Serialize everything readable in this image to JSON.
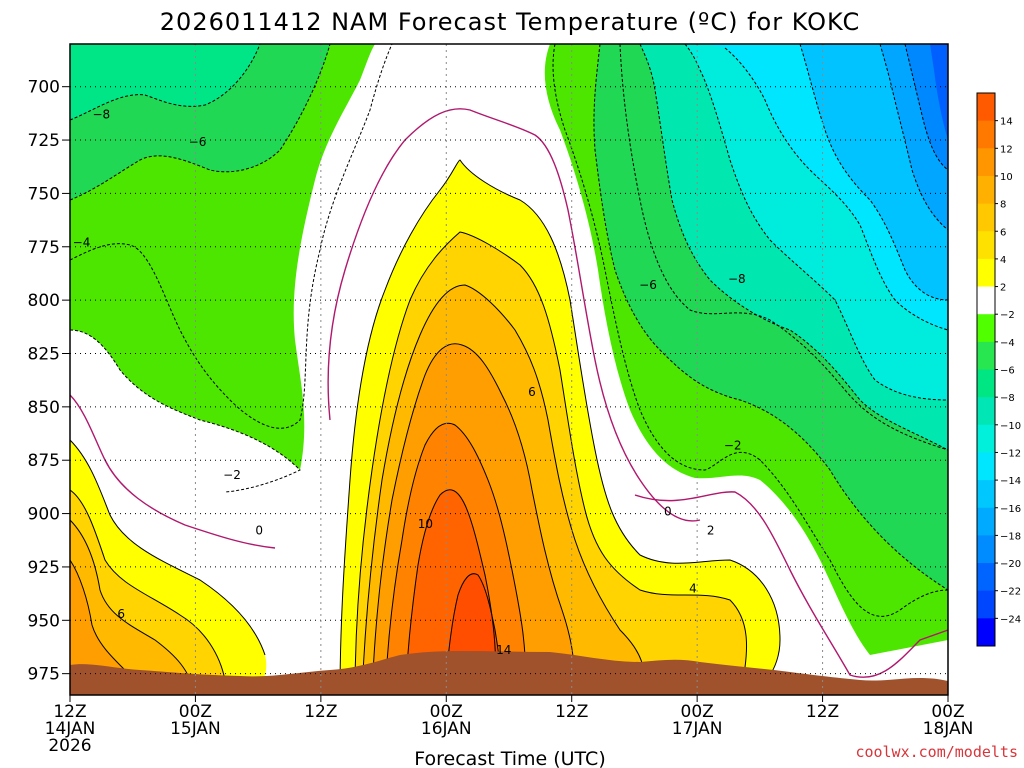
{
  "chart_data": {
    "type": "heatmap",
    "title": "2026011412 NAM Forecast Temperature (ºC) for KOKC",
    "xlabel": "Forecast Time (UTC)",
    "ylabel": "",
    "credit": "coolwx.com/modelts",
    "x_hours_range": [
      0,
      84
    ],
    "y_pressure_range": [
      985,
      680
    ],
    "y_ticks": [
      "700",
      "725",
      "750",
      "775",
      "800",
      "825",
      "850",
      "875",
      "900",
      "925",
      "950",
      "975"
    ],
    "x_ticks": [
      {
        "hour": 0,
        "line1": "12Z",
        "line2": "14JAN",
        "line3": "2026"
      },
      {
        "hour": 12,
        "line1": "00Z",
        "line2": "15JAN",
        "line3": ""
      },
      {
        "hour": 24,
        "line1": "12Z",
        "line2": "",
        "line3": ""
      },
      {
        "hour": 36,
        "line1": "00Z",
        "line2": "16JAN",
        "line3": ""
      },
      {
        "hour": 48,
        "line1": "12Z",
        "line2": "",
        "line3": ""
      },
      {
        "hour": 60,
        "line1": "00Z",
        "line2": "17JAN",
        "line3": ""
      },
      {
        "hour": 72,
        "line1": "12Z",
        "line2": "",
        "line3": ""
      },
      {
        "hour": 84,
        "line1": "00Z",
        "line2": "18JAN",
        "line3": ""
      }
    ],
    "grid": true,
    "colorbar": {
      "placement": "right",
      "labels": [
        "14",
        "12",
        "10",
        "8",
        "6",
        "4",
        "2",
        "−2",
        "−4",
        "−6",
        "−8",
        "−10",
        "−12",
        "−14",
        "−16",
        "−18",
        "−20",
        "−22",
        "−24"
      ],
      "colors": [
        "#ff5a00",
        "#ff7800",
        "#ff9600",
        "#ffb000",
        "#ffc800",
        "#ffe100",
        "#ffff00",
        "#ffffff",
        "#50ff00",
        "#28e650",
        "#00e682",
        "#00e6b4",
        "#00f0dc",
        "#00e6ff",
        "#00c8ff",
        "#00aaff",
        "#008cff",
        "#0064ff",
        "#0046ff",
        "#0000ff"
      ]
    },
    "contour_labels": [
      {
        "text": "−8",
        "hour": 3,
        "p": 713
      },
      {
        "text": "−6",
        "hour": 12.2,
        "p": 726
      },
      {
        "text": "−4",
        "hour": 1.1,
        "p": 773
      },
      {
        "text": "−2",
        "hour": 15.5,
        "p": 882
      },
      {
        "text": "0",
        "hour": 18.1,
        "p": 908
      },
      {
        "text": "6",
        "hour": 4.9,
        "p": 947
      },
      {
        "text": "10",
        "hour": 34,
        "p": 905
      },
      {
        "text": "6",
        "hour": 44.2,
        "p": 843
      },
      {
        "text": "14",
        "hour": 41.5,
        "p": 964
      },
      {
        "text": "−6",
        "hour": 55.3,
        "p": 793
      },
      {
        "text": "−8",
        "hour": 63.8,
        "p": 790
      },
      {
        "text": "−2",
        "hour": 63.4,
        "p": 868
      },
      {
        "text": "0",
        "hour": 57.2,
        "p": 899
      },
      {
        "text": "2",
        "hour": 61.3,
        "p": 908
      },
      {
        "text": "4",
        "hour": 59.6,
        "p": 935
      }
    ]
  }
}
